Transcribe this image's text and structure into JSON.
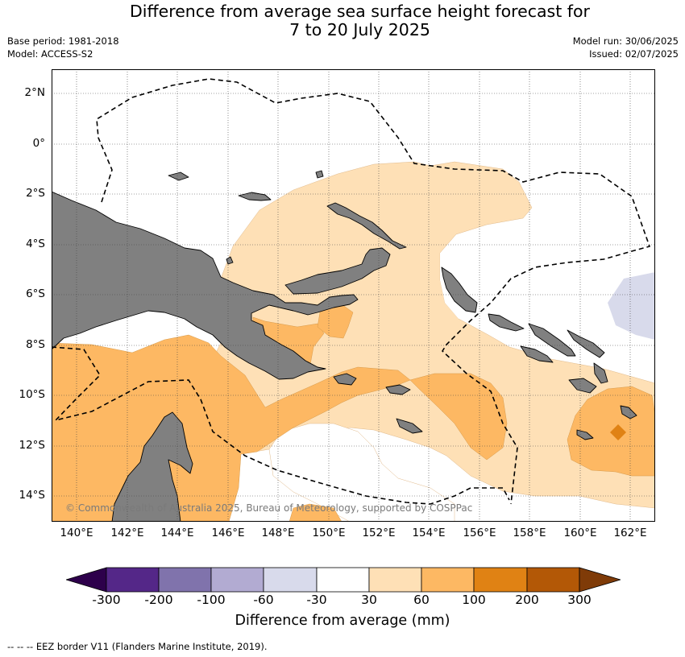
{
  "title": {
    "line1": "Difference from average sea surface height forecast for",
    "line2": "7 to 20 July 2025"
  },
  "meta": {
    "base_period": "Base period: 1981-2018",
    "model": "Model: ACCESS-S2",
    "model_run": "Model run: 30/06/2025",
    "issued": "Issued: 02/07/2025"
  },
  "map": {
    "lat_range": [
      -15,
      3
    ],
    "lon_range": [
      139,
      163
    ],
    "lat_labels": [
      "2°N",
      "0°",
      "2°S",
      "4°S",
      "6°S",
      "8°S",
      "10°S",
      "12°S",
      "14°S"
    ],
    "lon_labels": [
      "140°E",
      "142°E",
      "144°E",
      "146°E",
      "148°E",
      "150°E",
      "152°E",
      "154°E",
      "156°E",
      "158°E",
      "160°E",
      "162°E"
    ],
    "land_color": "#808080",
    "grid": "dotted",
    "copyright": "© Commonwealth of Australia 2025, Bureau of Meteorology, supported by COSPPac"
  },
  "colorbar": {
    "title": "Difference from average (mm)",
    "tick_labels": [
      "-300",
      "-200",
      "-100",
      "-60",
      "-30",
      "30",
      "60",
      "100",
      "200",
      "300"
    ],
    "colors": [
      "#2d004b",
      "#542788",
      "#8073ac",
      "#b2abd2",
      "#d8daeb",
      "#ffffff",
      "#fee0b6",
      "#fdb863",
      "#e08214",
      "#b35806",
      "#7f3b08"
    ]
  },
  "legend": {
    "eez": "--  --  -- EEZ border V11 (Flanders Marine Institute, 2019)."
  }
}
